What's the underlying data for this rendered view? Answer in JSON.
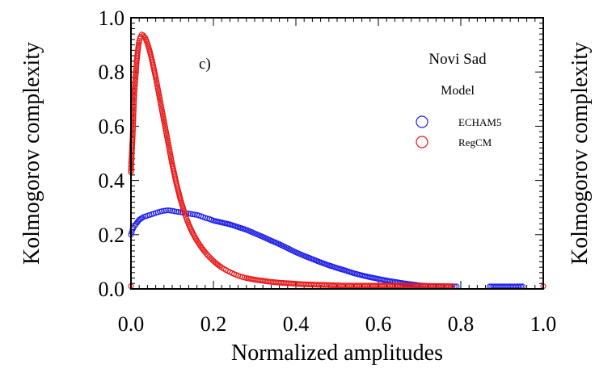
{
  "chart_data": {
    "type": "scatter",
    "xlabel": "Normalized amplitudes",
    "ylabel": "Kolmogorov complexity",
    "ylabel_right": "Kolmogorov complexity",
    "xlim": [
      0.0,
      1.0
    ],
    "ylim": [
      0.0,
      1.0
    ],
    "xticks": [
      "0.0",
      "0.2",
      "0.4",
      "0.6",
      "0.8",
      "1.0"
    ],
    "yticks": [
      "0.0",
      "0.2",
      "0.4",
      "0.6",
      "0.8",
      "1.0"
    ],
    "grid": false,
    "panel_label": "c)",
    "legend": {
      "title": "Novi Sad",
      "subtitle": "Model",
      "placement": "top-right",
      "entries": [
        "ECHAM5",
        "RegCM"
      ]
    },
    "series": [
      {
        "name": "ECHAM5",
        "color": "#1f1fe6",
        "marker": "open-circle",
        "points": [
          [
            0.0,
            0.2
          ],
          [
            0.002,
            0.21
          ],
          [
            0.004,
            0.22
          ],
          [
            0.006,
            0.225
          ],
          [
            0.01,
            0.235
          ],
          [
            0.015,
            0.245
          ],
          [
            0.02,
            0.255
          ],
          [
            0.03,
            0.265
          ],
          [
            0.04,
            0.27
          ],
          [
            0.05,
            0.275
          ],
          [
            0.06,
            0.28
          ],
          [
            0.07,
            0.285
          ],
          [
            0.08,
            0.288
          ],
          [
            0.09,
            0.29
          ],
          [
            0.1,
            0.288
          ],
          [
            0.11,
            0.285
          ],
          [
            0.12,
            0.283
          ],
          [
            0.13,
            0.28
          ],
          [
            0.14,
            0.278
          ],
          [
            0.15,
            0.275
          ],
          [
            0.16,
            0.273
          ],
          [
            0.17,
            0.268
          ],
          [
            0.18,
            0.262
          ],
          [
            0.19,
            0.258
          ],
          [
            0.2,
            0.252
          ],
          [
            0.22,
            0.245
          ],
          [
            0.24,
            0.238
          ],
          [
            0.26,
            0.228
          ],
          [
            0.28,
            0.218
          ],
          [
            0.3,
            0.205
          ],
          [
            0.32,
            0.192
          ],
          [
            0.34,
            0.178
          ],
          [
            0.36,
            0.165
          ],
          [
            0.38,
            0.15
          ],
          [
            0.4,
            0.135
          ],
          [
            0.42,
            0.122
          ],
          [
            0.44,
            0.11
          ],
          [
            0.46,
            0.098
          ],
          [
            0.48,
            0.087
          ],
          [
            0.5,
            0.077
          ],
          [
            0.52,
            0.068
          ],
          [
            0.54,
            0.058
          ],
          [
            0.56,
            0.05
          ],
          [
            0.58,
            0.043
          ],
          [
            0.6,
            0.037
          ],
          [
            0.62,
            0.031
          ],
          [
            0.64,
            0.026
          ],
          [
            0.66,
            0.021
          ],
          [
            0.68,
            0.017
          ],
          [
            0.7,
            0.013
          ],
          [
            0.72,
            0.011
          ],
          [
            0.74,
            0.01
          ],
          [
            0.76,
            0.01
          ],
          [
            0.78,
            0.009
          ],
          [
            0.79,
            0.009
          ],
          [
            0.87,
            0.009
          ],
          [
            0.91,
            0.009
          ],
          [
            0.95,
            0.009
          ]
        ]
      },
      {
        "name": "RegCM",
        "color": "#e61a1a",
        "marker": "open-circle",
        "points": [
          [
            0.0,
            0.01
          ],
          [
            0.0,
            0.43
          ],
          [
            0.001,
            0.47
          ],
          [
            0.002,
            0.5
          ],
          [
            0.003,
            0.53
          ],
          [
            0.004,
            0.56
          ],
          [
            0.005,
            0.6
          ],
          [
            0.006,
            0.64
          ],
          [
            0.007,
            0.68
          ],
          [
            0.008,
            0.72
          ],
          [
            0.01,
            0.76
          ],
          [
            0.012,
            0.8
          ],
          [
            0.014,
            0.84
          ],
          [
            0.016,
            0.87
          ],
          [
            0.018,
            0.895
          ],
          [
            0.02,
            0.915
          ],
          [
            0.023,
            0.93
          ],
          [
            0.026,
            0.938
          ],
          [
            0.03,
            0.935
          ],
          [
            0.035,
            0.925
          ],
          [
            0.04,
            0.905
          ],
          [
            0.045,
            0.88
          ],
          [
            0.05,
            0.85
          ],
          [
            0.055,
            0.815
          ],
          [
            0.06,
            0.78
          ],
          [
            0.065,
            0.74
          ],
          [
            0.07,
            0.7
          ],
          [
            0.075,
            0.66
          ],
          [
            0.08,
            0.62
          ],
          [
            0.085,
            0.58
          ],
          [
            0.09,
            0.54
          ],
          [
            0.095,
            0.5
          ],
          [
            0.1,
            0.46
          ],
          [
            0.105,
            0.425
          ],
          [
            0.11,
            0.39
          ],
          [
            0.115,
            0.36
          ],
          [
            0.12,
            0.33
          ],
          [
            0.125,
            0.305
          ],
          [
            0.13,
            0.28
          ],
          [
            0.135,
            0.258
          ],
          [
            0.14,
            0.238
          ],
          [
            0.15,
            0.205
          ],
          [
            0.16,
            0.178
          ],
          [
            0.17,
            0.155
          ],
          [
            0.18,
            0.135
          ],
          [
            0.19,
            0.118
          ],
          [
            0.2,
            0.103
          ],
          [
            0.21,
            0.09
          ],
          [
            0.22,
            0.079
          ],
          [
            0.23,
            0.07
          ],
          [
            0.24,
            0.062
          ],
          [
            0.25,
            0.055
          ],
          [
            0.26,
            0.049
          ],
          [
            0.27,
            0.044
          ],
          [
            0.28,
            0.04
          ],
          [
            0.3,
            0.034
          ],
          [
            0.32,
            0.03
          ],
          [
            0.34,
            0.026
          ],
          [
            0.36,
            0.023
          ],
          [
            0.38,
            0.021
          ],
          [
            0.4,
            0.019
          ],
          [
            0.42,
            0.017
          ],
          [
            0.44,
            0.016
          ],
          [
            0.46,
            0.015
          ],
          [
            0.48,
            0.014
          ],
          [
            0.5,
            0.013
          ],
          [
            0.52,
            0.012
          ],
          [
            0.54,
            0.012
          ],
          [
            0.56,
            0.012
          ],
          [
            0.58,
            0.012
          ],
          [
            0.6,
            0.012
          ],
          [
            0.62,
            0.012
          ],
          [
            0.64,
            0.012
          ],
          [
            0.66,
            0.012
          ],
          [
            0.68,
            0.011
          ],
          [
            0.7,
            0.011
          ],
          [
            0.72,
            0.011
          ],
          [
            0.74,
            0.011
          ],
          [
            0.76,
            0.01
          ],
          [
            0.78,
            0.01
          ],
          [
            1.0,
            0.01
          ]
        ]
      }
    ]
  }
}
